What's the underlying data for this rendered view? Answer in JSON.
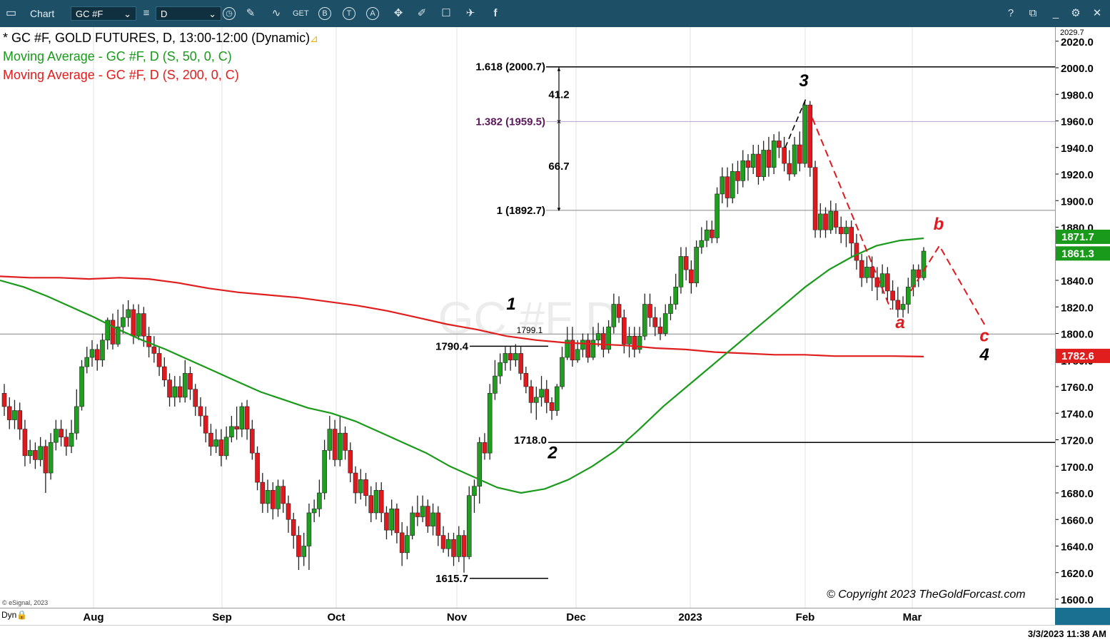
{
  "toolbar": {
    "title": "Chart",
    "symbol": "GC #F",
    "interval": "D",
    "help": "?"
  },
  "legend": {
    "main": "* GC #F, GOLD FUTURES, D, 13:00-12:00 (Dynamic)",
    "ma50": "Moving Average - GC #F, D (S, 50, 0, C)",
    "ma200": "Moving Average - GC #F, D (S, 200, 0, C)"
  },
  "watermark": "GC #F D",
  "copyright": "© Copyright 2023 TheGoldForcast.com",
  "esignal": "© eSignal, 2023",
  "dyn": "Dyn",
  "datetime": "3/3/2023 11:38 AM",
  "colors": {
    "up": "#1f9e1f",
    "down": "#e0191e",
    "ma50": "#1a9a1a",
    "ma200": "#e01e1e",
    "toolbar": "#1d4f66",
    "fib": "#5a1a5a"
  },
  "chart_data": {
    "type": "candlestick",
    "title": "GC #F, GOLD FUTURES, D",
    "ylim": [
      1600,
      2029.7
    ],
    "y_ticks": [
      1600,
      1620,
      1640,
      1660,
      1680,
      1700,
      1720,
      1740,
      1760,
      1780,
      1800,
      1820,
      1840,
      1860,
      1880,
      1900,
      1920,
      1940,
      1960,
      1980,
      2000,
      2020
    ],
    "y_tick_labels": [
      "1600.0",
      "1620.0",
      "1640.0",
      "1660.0",
      "1680.0",
      "1700.0",
      "1720.0",
      "1740.0",
      "1760.0",
      "1780.0",
      "1800.0",
      "1820.0",
      "1840.0",
      "1860.0",
      "1880.0",
      "1900.0",
      "1920.0",
      "1940.0",
      "1960.0",
      "1980.0",
      "2000.0",
      "2020.0"
    ],
    "x_labels": [
      "Aug",
      "Sep",
      "Oct",
      "Nov",
      "Dec",
      "2023",
      "Feb",
      "Mar"
    ],
    "top_value": "2029.7",
    "badges": [
      {
        "label": "1871.7",
        "value": 1871.7,
        "color": "#1a9a1a"
      },
      {
        "label": "1861.3",
        "value": 1861.3,
        "color": "#1a9a1a"
      },
      {
        "label": "1782.6",
        "value": 1782.6,
        "color": "#e01e1e"
      }
    ],
    "fib_levels": [
      {
        "label": "1.618 (2000.7)",
        "value": 2000.7
      },
      {
        "label": "1.382 (1959.5)",
        "value": 1959.5
      },
      {
        "label": "1 (1892.7)",
        "value": 1892.7
      }
    ],
    "measure_labels": [
      "41.2",
      "66.7"
    ],
    "price_labels": [
      "1790.4",
      "1799.1",
      "1718.0",
      "1615.7"
    ],
    "wave_labels": [
      "1",
      "2",
      "3",
      "4",
      "a",
      "b",
      "c"
    ],
    "candles": [
      [
        1755,
        1745,
        1762,
        1738
      ],
      [
        1745,
        1735,
        1752,
        1728
      ],
      [
        1735,
        1742,
        1750,
        1728
      ],
      [
        1742,
        1728,
        1748,
        1720
      ],
      [
        1728,
        1708,
        1735,
        1700
      ],
      [
        1708,
        1712,
        1720,
        1702
      ],
      [
        1712,
        1705,
        1718,
        1698
      ],
      [
        1705,
        1715,
        1722,
        1700
      ],
      [
        1715,
        1695,
        1720,
        1680
      ],
      [
        1695,
        1718,
        1725,
        1690
      ],
      [
        1718,
        1728,
        1735,
        1712
      ],
      [
        1728,
        1722,
        1735,
        1715
      ],
      [
        1722,
        1715,
        1728,
        1708
      ],
      [
        1715,
        1725,
        1735,
        1710
      ],
      [
        1725,
        1745,
        1758,
        1720
      ],
      [
        1745,
        1775,
        1780,
        1742
      ],
      [
        1775,
        1782,
        1790,
        1770
      ],
      [
        1782,
        1788,
        1795,
        1775
      ],
      [
        1788,
        1780,
        1792,
        1772
      ],
      [
        1780,
        1795,
        1800,
        1775
      ],
      [
        1795,
        1810,
        1812,
        1788
      ],
      [
        1810,
        1792,
        1815,
        1788
      ],
      [
        1792,
        1805,
        1818,
        1790
      ],
      [
        1805,
        1812,
        1822,
        1800
      ],
      [
        1812,
        1818,
        1825,
        1805
      ],
      [
        1818,
        1798,
        1822,
        1792
      ],
      [
        1798,
        1815,
        1822,
        1795
      ],
      [
        1815,
        1798,
        1820,
        1790
      ],
      [
        1798,
        1790,
        1805,
        1782
      ],
      [
        1790,
        1785,
        1798,
        1778
      ],
      [
        1785,
        1775,
        1790,
        1768
      ],
      [
        1775,
        1765,
        1782,
        1760
      ],
      [
        1765,
        1752,
        1770,
        1745
      ],
      [
        1752,
        1760,
        1768,
        1745
      ],
      [
        1760,
        1752,
        1768,
        1748
      ],
      [
        1752,
        1770,
        1780,
        1748
      ],
      [
        1770,
        1758,
        1775,
        1750
      ],
      [
        1758,
        1745,
        1762,
        1738
      ],
      [
        1745,
        1738,
        1752,
        1730
      ],
      [
        1738,
        1725,
        1745,
        1718
      ],
      [
        1725,
        1715,
        1732,
        1708
      ],
      [
        1715,
        1720,
        1728,
        1710
      ],
      [
        1720,
        1708,
        1728,
        1700
      ],
      [
        1708,
        1722,
        1730,
        1705
      ],
      [
        1722,
        1730,
        1738,
        1718
      ],
      [
        1730,
        1728,
        1745,
        1720
      ],
      [
        1728,
        1745,
        1748,
        1722
      ],
      [
        1745,
        1728,
        1750,
        1720
      ],
      [
        1728,
        1710,
        1735,
        1705
      ],
      [
        1710,
        1688,
        1715,
        1682
      ],
      [
        1688,
        1672,
        1695,
        1665
      ],
      [
        1672,
        1682,
        1690,
        1665
      ],
      [
        1682,
        1668,
        1688,
        1660
      ],
      [
        1668,
        1685,
        1690,
        1662
      ],
      [
        1685,
        1672,
        1690,
        1665
      ],
      [
        1672,
        1660,
        1678,
        1650
      ],
      [
        1660,
        1648,
        1665,
        1638
      ],
      [
        1648,
        1632,
        1655,
        1622
      ],
      [
        1632,
        1640,
        1650,
        1625
      ],
      [
        1640,
        1665,
        1672,
        1622
      ],
      [
        1665,
        1668,
        1675,
        1658
      ],
      [
        1668,
        1680,
        1690,
        1662
      ],
      [
        1680,
        1712,
        1720,
        1675
      ],
      [
        1712,
        1728,
        1738,
        1705
      ],
      [
        1728,
        1705,
        1735,
        1700
      ],
      [
        1705,
        1725,
        1738,
        1700
      ],
      [
        1725,
        1712,
        1730,
        1705
      ],
      [
        1712,
        1695,
        1718,
        1688
      ],
      [
        1695,
        1680,
        1700,
        1672
      ],
      [
        1680,
        1690,
        1698,
        1675
      ],
      [
        1690,
        1678,
        1695,
        1670
      ],
      [
        1678,
        1665,
        1685,
        1658
      ],
      [
        1665,
        1682,
        1688,
        1660
      ],
      [
        1682,
        1665,
        1688,
        1658
      ],
      [
        1665,
        1652,
        1670,
        1645
      ],
      [
        1652,
        1668,
        1675,
        1648
      ],
      [
        1668,
        1650,
        1672,
        1642
      ],
      [
        1650,
        1635,
        1658,
        1625
      ],
      [
        1635,
        1648,
        1655,
        1630
      ],
      [
        1648,
        1665,
        1670,
        1645
      ],
      [
        1665,
        1662,
        1678,
        1655
      ],
      [
        1662,
        1670,
        1678,
        1658
      ],
      [
        1670,
        1655,
        1675,
        1650
      ],
      [
        1655,
        1665,
        1672,
        1648
      ],
      [
        1665,
        1648,
        1670,
        1640
      ],
      [
        1648,
        1638,
        1655,
        1635
      ],
      [
        1638,
        1645,
        1650,
        1632
      ],
      [
        1645,
        1632,
        1650,
        1625
      ],
      [
        1632,
        1648,
        1655,
        1628
      ],
      [
        1648,
        1632,
        1652,
        1620
      ],
      [
        1632,
        1678,
        1685,
        1630
      ],
      [
        1678,
        1685,
        1690,
        1665
      ],
      [
        1685,
        1718,
        1722,
        1672
      ],
      [
        1718,
        1710,
        1725,
        1705
      ],
      [
        1710,
        1755,
        1762,
        1705
      ],
      [
        1755,
        1768,
        1780,
        1750
      ],
      [
        1768,
        1778,
        1785,
        1762
      ],
      [
        1778,
        1785,
        1790,
        1772
      ],
      [
        1785,
        1780,
        1790,
        1772
      ],
      [
        1780,
        1785,
        1792,
        1775
      ],
      [
        1785,
        1770,
        1790,
        1765
      ],
      [
        1770,
        1760,
        1775,
        1755
      ],
      [
        1760,
        1748,
        1765,
        1740
      ],
      [
        1748,
        1752,
        1760,
        1735
      ],
      [
        1752,
        1758,
        1768,
        1745
      ],
      [
        1758,
        1748,
        1765,
        1740
      ],
      [
        1748,
        1742,
        1752,
        1735
      ],
      [
        1742,
        1760,
        1762,
        1738
      ],
      [
        1760,
        1782,
        1790,
        1758
      ],
      [
        1782,
        1795,
        1805,
        1780
      ],
      [
        1795,
        1780,
        1805,
        1775
      ],
      [
        1780,
        1788,
        1795,
        1778
      ],
      [
        1788,
        1795,
        1800,
        1782
      ],
      [
        1795,
        1782,
        1800,
        1778
      ],
      [
        1782,
        1795,
        1805,
        1780
      ],
      [
        1795,
        1800,
        1808,
        1790
      ],
      [
        1800,
        1788,
        1805,
        1782
      ],
      [
        1788,
        1805,
        1810,
        1785
      ],
      [
        1805,
        1822,
        1830,
        1800
      ],
      [
        1822,
        1812,
        1828,
        1808
      ],
      [
        1812,
        1792,
        1818,
        1785
      ],
      [
        1792,
        1798,
        1805,
        1782
      ],
      [
        1798,
        1788,
        1805,
        1782
      ],
      [
        1788,
        1798,
        1805,
        1785
      ],
      [
        1798,
        1822,
        1830,
        1795
      ],
      [
        1822,
        1812,
        1830,
        1805
      ],
      [
        1812,
        1805,
        1820,
        1798
      ],
      [
        1805,
        1800,
        1812,
        1795
      ],
      [
        1800,
        1815,
        1822,
        1798
      ],
      [
        1815,
        1822,
        1828,
        1810
      ],
      [
        1822,
        1835,
        1845,
        1818
      ],
      [
        1835,
        1858,
        1865,
        1830
      ],
      [
        1858,
        1848,
        1865,
        1840
      ],
      [
        1848,
        1838,
        1855,
        1830
      ],
      [
        1838,
        1865,
        1870,
        1835
      ],
      [
        1865,
        1870,
        1880,
        1860
      ],
      [
        1870,
        1878,
        1885,
        1865
      ],
      [
        1878,
        1872,
        1885,
        1868
      ],
      [
        1872,
        1905,
        1910,
        1868
      ],
      [
        1905,
        1918,
        1925,
        1898
      ],
      [
        1918,
        1902,
        1925,
        1895
      ],
      [
        1902,
        1922,
        1928,
        1898
      ],
      [
        1922,
        1915,
        1930,
        1905
      ],
      [
        1915,
        1930,
        1938,
        1910
      ],
      [
        1930,
        1925,
        1935,
        1915
      ],
      [
        1925,
        1935,
        1942,
        1920
      ],
      [
        1935,
        1918,
        1942,
        1912
      ],
      [
        1918,
        1938,
        1945,
        1915
      ],
      [
        1938,
        1925,
        1948,
        1918
      ],
      [
        1925,
        1945,
        1950,
        1920
      ],
      [
        1945,
        1940,
        1952,
        1932
      ],
      [
        1940,
        1928,
        1948,
        1922
      ],
      [
        1928,
        1920,
        1938,
        1915
      ],
      [
        1920,
        1942,
        1948,
        1918
      ],
      [
        1942,
        1928,
        1952,
        1922
      ],
      [
        1928,
        1972,
        1975,
        1925
      ],
      [
        1972,
        1925,
        1975,
        1918
      ],
      [
        1925,
        1878,
        1930,
        1872
      ],
      [
        1878,
        1890,
        1898,
        1872
      ],
      [
        1890,
        1878,
        1895,
        1872
      ],
      [
        1878,
        1892,
        1900,
        1875
      ],
      [
        1892,
        1880,
        1898,
        1875
      ],
      [
        1880,
        1875,
        1888,
        1868
      ],
      [
        1875,
        1880,
        1885,
        1865
      ],
      [
        1880,
        1868,
        1885,
        1858
      ],
      [
        1868,
        1855,
        1875,
        1848
      ],
      [
        1855,
        1842,
        1860,
        1835
      ],
      [
        1842,
        1850,
        1858,
        1838
      ],
      [
        1850,
        1842,
        1858,
        1832
      ],
      [
        1842,
        1835,
        1850,
        1825
      ],
      [
        1835,
        1845,
        1852,
        1830
      ],
      [
        1845,
        1832,
        1850,
        1825
      ],
      [
        1832,
        1825,
        1840,
        1818
      ],
      [
        1825,
        1818,
        1835,
        1812
      ],
      [
        1818,
        1822,
        1828,
        1812
      ],
      [
        1822,
        1835,
        1842,
        1815
      ],
      [
        1835,
        1848,
        1852,
        1828
      ],
      [
        1848,
        1842,
        1852,
        1835
      ],
      [
        1842,
        1862,
        1865,
        1840
      ]
    ],
    "ma50_points": [
      [
        0,
        1840
      ],
      [
        10,
        1835
      ],
      [
        20,
        1828
      ],
      [
        30,
        1820
      ],
      [
        40,
        1812
      ],
      [
        50,
        1803
      ],
      [
        60,
        1795
      ],
      [
        70,
        1788
      ],
      [
        80,
        1780
      ],
      [
        90,
        1772
      ],
      [
        100,
        1764
      ],
      [
        110,
        1756
      ],
      [
        120,
        1750
      ],
      [
        130,
        1744
      ],
      [
        140,
        1740
      ],
      [
        150,
        1734
      ],
      [
        160,
        1726
      ],
      [
        170,
        1718
      ],
      [
        180,
        1710
      ],
      [
        190,
        1700
      ],
      [
        200,
        1692
      ],
      [
        210,
        1684
      ],
      [
        220,
        1680
      ],
      [
        230,
        1683
      ],
      [
        240,
        1690
      ],
      [
        250,
        1700
      ],
      [
        260,
        1712
      ],
      [
        270,
        1728
      ],
      [
        280,
        1745
      ],
      [
        290,
        1760
      ],
      [
        300,
        1775
      ],
      [
        310,
        1790
      ],
      [
        320,
        1805
      ],
      [
        330,
        1820
      ],
      [
        340,
        1835
      ],
      [
        350,
        1848
      ],
      [
        360,
        1858
      ],
      [
        370,
        1866
      ],
      [
        380,
        1870
      ],
      [
        390,
        1871.7
      ]
    ],
    "ma200_points": [
      [
        0,
        1843
      ],
      [
        10,
        1842
      ],
      [
        20,
        1842
      ],
      [
        30,
        1841
      ],
      [
        40,
        1842
      ],
      [
        50,
        1841
      ],
      [
        60,
        1838
      ],
      [
        70,
        1834
      ],
      [
        80,
        1831
      ],
      [
        90,
        1829
      ],
      [
        100,
        1827
      ],
      [
        110,
        1824
      ],
      [
        120,
        1821
      ],
      [
        130,
        1817
      ],
      [
        140,
        1812
      ],
      [
        150,
        1807
      ],
      [
        160,
        1803
      ],
      [
        170,
        1798
      ],
      [
        180,
        1795
      ],
      [
        190,
        1793
      ],
      [
        200,
        1792
      ],
      [
        210,
        1791
      ],
      [
        220,
        1789
      ],
      [
        230,
        1788
      ],
      [
        240,
        1786
      ],
      [
        250,
        1785
      ],
      [
        260,
        1784
      ],
      [
        270,
        1784
      ],
      [
        280,
        1783
      ],
      [
        290,
        1783
      ],
      [
        300,
        1783
      ],
      [
        310,
        1782.6
      ]
    ]
  }
}
